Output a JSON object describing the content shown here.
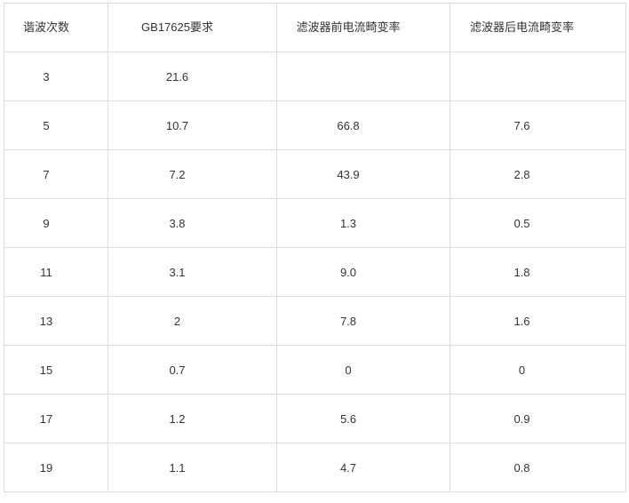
{
  "table": {
    "headers": [
      "谐波次数",
      "GB17625要求",
      "滤波器前电流畸变率",
      "滤波器后电流畸变率"
    ],
    "rows": [
      [
        "3",
        "21.6",
        "",
        ""
      ],
      [
        "5",
        "10.7",
        "66.8",
        "7.6"
      ],
      [
        "7",
        "7.2",
        "43.9",
        "2.8"
      ],
      [
        "9",
        "3.8",
        "1.3",
        "0.5"
      ],
      [
        "11",
        "3.1",
        "9.0",
        "1.8"
      ],
      [
        "13",
        "2",
        "7.8",
        "1.6"
      ],
      [
        "15",
        "0.7",
        "0",
        "0"
      ],
      [
        "17",
        "1.2",
        "5.6",
        "0.9"
      ],
      [
        "19",
        "1.1",
        "4.7",
        "0.8"
      ]
    ]
  }
}
